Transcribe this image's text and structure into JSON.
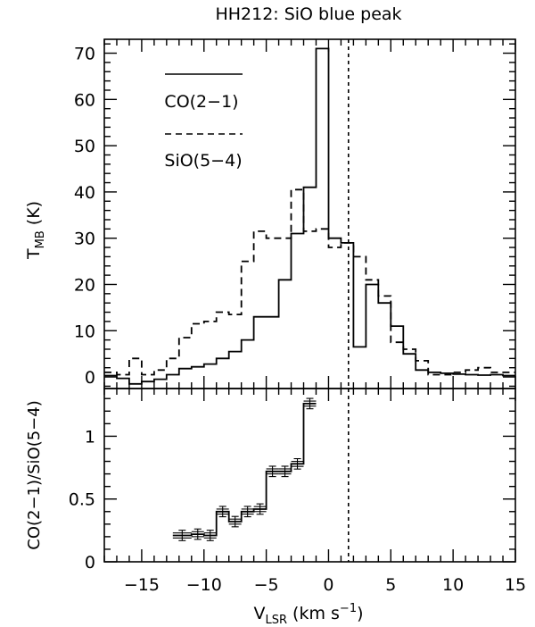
{
  "chart_data": [
    {
      "type": "line",
      "panel": "top",
      "title": "HH212: SiO blue peak",
      "xlabel": "",
      "ylabel_main": "T",
      "ylabel_sub": "MB",
      "ylabel_unit": " (K)",
      "xlim": [
        -18,
        15
      ],
      "ylim": [
        -2.5,
        73
      ],
      "y_ticks": [
        0,
        10,
        20,
        30,
        40,
        50,
        60,
        70
      ],
      "y_tick_labels": [
        "0",
        "10",
        "20",
        "30",
        "40",
        "50",
        "60",
        "70"
      ],
      "vline_x": 1.6,
      "grid": false,
      "legend": [
        {
          "name": "CO(2−1)",
          "style": "solid"
        },
        {
          "name": "SiO(5−4)",
          "style": "dashed"
        }
      ],
      "series": [
        {
          "name": "CO(2−1)",
          "style": "solid",
          "x": [
            -18,
            -17,
            -16,
            -15,
            -14,
            -13,
            -12,
            -11,
            -10,
            -9,
            -8,
            -7,
            -6,
            -5,
            -4,
            -3,
            -2,
            -1,
            0,
            1,
            2,
            3,
            4,
            5,
            6,
            7,
            8,
            9,
            10,
            11,
            12,
            13,
            14,
            15
          ],
          "y": [
            0.3,
            -0.3,
            -1.5,
            -1.0,
            -0.5,
            0.5,
            1.8,
            2.2,
            2.8,
            4.0,
            5.5,
            8.0,
            13.0,
            13.0,
            21.0,
            31.0,
            41.0,
            71.0,
            30.0,
            29.0,
            6.5,
            20.0,
            16.0,
            11.0,
            5.0,
            1.5,
            1.0,
            0.8,
            0.6,
            0.5,
            0.4,
            0.5,
            0.3,
            0
          ]
        },
        {
          "name": "SiO(5−4)",
          "style": "dashed",
          "x": [
            -18,
            -17,
            -16,
            -15,
            -14,
            -13,
            -12,
            -11,
            -10,
            -9,
            -8,
            -7,
            -6,
            -5,
            -4,
            -3,
            -2,
            -1,
            0,
            1,
            2,
            3,
            4,
            5,
            6,
            7,
            8,
            9,
            10,
            11,
            12,
            13,
            14,
            15
          ],
          "y": [
            1.0,
            0.5,
            4.0,
            0.5,
            1.5,
            4.0,
            8.5,
            11.5,
            12.0,
            14.0,
            13.5,
            25.0,
            31.5,
            30.0,
            30.0,
            40.5,
            31.5,
            32.0,
            28.0,
            29.0,
            26.0,
            21.0,
            17.5,
            7.5,
            6.0,
            3.5,
            0.5,
            0.5,
            1.0,
            1.5,
            2.0,
            1.0,
            1.0,
            0
          ]
        }
      ]
    },
    {
      "type": "line",
      "panel": "bottom",
      "xlabel_main": "V",
      "xlabel_sub": "LSR",
      "xlabel_unit": " (km s",
      "xlabel_sup": "−1",
      "xlabel_close": ")",
      "ylabel": "CO(2−1)/SiO(5−4)",
      "xlim": [
        -18,
        15
      ],
      "ylim": [
        0,
        1.38
      ],
      "x_ticks": [
        -15,
        -10,
        -5,
        0,
        5,
        10,
        15
      ],
      "x_tick_labels": [
        "−15",
        "−10",
        "−5",
        "0",
        "5",
        "10",
        "15"
      ],
      "y_ticks": [
        0,
        0.5,
        1
      ],
      "y_tick_labels": [
        "0",
        "0.5",
        "1"
      ],
      "vline_x": 1.6,
      "grid": false,
      "series": [
        {
          "name": "",
          "style": "solid",
          "x": [
            -12.5,
            -11,
            -10,
            -9,
            -8,
            -7,
            -6,
            -5,
            -4,
            -3,
            -2,
            -1
          ],
          "y": [
            0.21,
            0.22,
            0.21,
            0.4,
            0.32,
            0.4,
            0.42,
            0.72,
            0.72,
            0.78,
            1.26,
            1.26
          ],
          "error": 0.02
        }
      ]
    }
  ]
}
